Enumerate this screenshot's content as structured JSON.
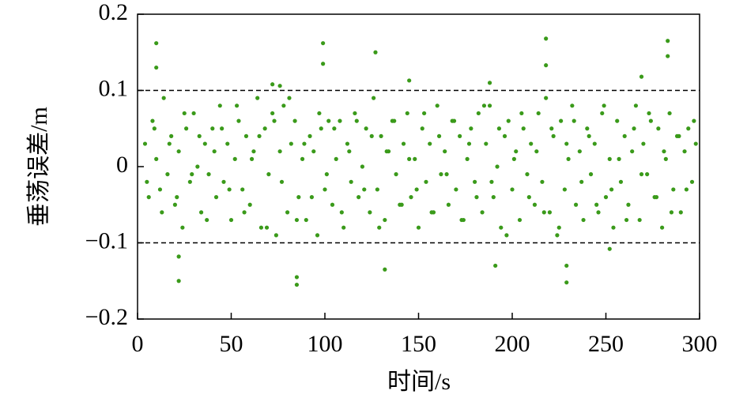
{
  "chart_data": {
    "type": "scatter",
    "xlabel": "时间/s",
    "ylabel": "垂荡误差/m",
    "xlim": [
      0,
      300
    ],
    "xticks": [
      0,
      50,
      100,
      150,
      200,
      250,
      300
    ],
    "ylim": [
      -0.2,
      0.2
    ],
    "yticks": [
      {
        "value": -0.2,
        "label": "−0.2"
      },
      {
        "value": -0.1,
        "label": "−0.1"
      },
      0,
      0.1,
      0.2
    ],
    "reference_lines": [
      0.1,
      -0.1
    ],
    "series": [
      {
        "color": "#3a9a1a",
        "x": [
          4,
          6,
          8,
          10,
          12,
          14,
          16,
          18,
          20,
          22,
          24,
          26,
          28,
          30,
          32,
          34,
          36,
          38,
          40,
          42,
          44,
          46,
          48,
          50,
          52,
          54,
          56,
          58,
          60,
          62,
          64,
          66,
          68,
          70,
          72,
          74,
          76,
          78,
          80,
          82,
          84,
          86,
          88,
          90,
          92,
          94,
          96,
          98,
          100,
          102,
          104,
          106,
          108,
          110,
          112,
          114,
          116,
          118,
          120,
          122,
          124,
          126,
          128,
          130,
          132,
          134,
          136,
          138,
          140,
          142,
          144,
          146,
          148,
          150,
          152,
          154,
          156,
          158,
          160,
          162,
          164,
          166,
          168,
          170,
          172,
          174,
          176,
          178,
          180,
          182,
          184,
          186,
          188,
          190,
          192,
          194,
          196,
          198,
          200,
          202,
          204,
          206,
          208,
          210,
          212,
          214,
          216,
          218,
          220,
          222,
          224,
          226,
          228,
          230,
          232,
          234,
          236,
          238,
          240,
          242,
          244,
          246,
          248,
          250,
          252,
          254,
          256,
          258,
          260,
          262,
          264,
          266,
          268,
          270,
          272,
          274,
          276,
          278,
          280,
          282,
          284,
          286,
          288,
          290,
          292,
          294,
          296,
          298
        ],
        "values": [
          0.03,
          -0.04,
          0.06,
          0.01,
          -0.03,
          0.09,
          -0.01,
          0.04,
          -0.05,
          0.02,
          -0.08,
          0.05,
          -0.02,
          0.07,
          0.0,
          -0.06,
          0.03,
          -0.01,
          0.05,
          -0.04,
          0.08,
          -0.02,
          0.03,
          -0.07,
          0.01,
          0.06,
          -0.03,
          0.04,
          -0.05,
          0.02,
          0.09,
          -0.08,
          0.05,
          -0.01,
          0.07,
          -0.09,
          0.02,
          0.08,
          -0.06,
          0.03,
          0.06,
          -0.04,
          0.01,
          -0.07,
          0.04,
          0.02,
          -0.09,
          0.05,
          -0.03,
          0.06,
          -0.05,
          0.01,
          0.06,
          -0.08,
          0.03,
          -0.02,
          0.07,
          -0.04,
          0.0,
          0.05,
          -0.06,
          0.09,
          -0.03,
          0.04,
          -0.07,
          0.02,
          0.06,
          -0.01,
          -0.05,
          0.03,
          0.07,
          -0.04,
          0.01,
          -0.08,
          0.05,
          -0.02,
          0.03,
          -0.06,
          0.08,
          -0.01,
          0.02,
          -0.05,
          0.06,
          -0.03,
          0.04,
          -0.07,
          0.01,
          0.05,
          -0.02,
          0.07,
          -0.06,
          0.03,
          0.08,
          -0.04,
          0.0,
          -0.08,
          0.04,
          0.06,
          -0.03,
          0.02,
          -0.07,
          0.05,
          -0.01,
          0.03,
          -0.05,
          0.07,
          -0.02,
          0.09,
          -0.06,
          0.04,
          -0.09,
          0.06,
          -0.03,
          0.01,
          0.08,
          -0.05,
          0.02,
          -0.07,
          0.05,
          -0.01,
          0.03,
          -0.06,
          0.07,
          -0.04,
          0.01,
          -0.08,
          0.06,
          -0.02,
          0.04,
          -0.05,
          0.02,
          0.08,
          -0.07,
          0.03,
          -0.01,
          0.06,
          -0.04,
          0.05,
          -0.08,
          0.01,
          0.07,
          -0.03,
          0.04,
          -0.06,
          0.02,
          0.05,
          -0.02,
          0.03
        ]
      },
      {
        "color": "#3a9a1a",
        "x": [
          5,
          9,
          13,
          17,
          21,
          25,
          29,
          33,
          37,
          41,
          45,
          49,
          53,
          57,
          61,
          65,
          69,
          73,
          77,
          81,
          85,
          89,
          93,
          97,
          101,
          105,
          109,
          113,
          117,
          121,
          125,
          129,
          133,
          137,
          141,
          145,
          149,
          153,
          157,
          161,
          165,
          169,
          173,
          177,
          181,
          185,
          189,
          193,
          197,
          201,
          205,
          209,
          213,
          217,
          221,
          225,
          229,
          233,
          237,
          241,
          245,
          249,
          253,
          257,
          261,
          265,
          269,
          273,
          277,
          281,
          285,
          289,
          293,
          297
        ],
        "values": [
          -0.02,
          0.05,
          -0.06,
          0.03,
          -0.04,
          0.07,
          -0.01,
          0.04,
          -0.07,
          0.02,
          0.05,
          -0.03,
          0.08,
          -0.06,
          0.01,
          0.04,
          -0.08,
          0.06,
          -0.02,
          0.09,
          -0.07,
          0.03,
          -0.04,
          0.07,
          -0.01,
          0.05,
          -0.06,
          0.02,
          0.06,
          -0.03,
          0.04,
          -0.08,
          0.02,
          0.06,
          -0.05,
          0.01,
          -0.03,
          0.07,
          -0.06,
          0.04,
          -0.01,
          0.06,
          -0.07,
          0.03,
          -0.04,
          0.08,
          -0.02,
          0.05,
          -0.09,
          0.01,
          0.07,
          -0.04,
          0.02,
          -0.06,
          0.05,
          -0.08,
          0.03,
          0.06,
          -0.02,
          0.04,
          -0.05,
          0.08,
          -0.03,
          0.01,
          -0.07,
          0.05,
          -0.01,
          0.07,
          -0.04,
          0.02,
          -0.06,
          0.04,
          -0.03,
          0.06
        ]
      },
      {
        "color": "#3a9a1a",
        "x": [
          10,
          10,
          22,
          22,
          99,
          99,
          85,
          85,
          127,
          132,
          145,
          188,
          191,
          218,
          218,
          229,
          229,
          252,
          269,
          283,
          283,
          72,
          76
        ],
        "values": [
          0.162,
          0.13,
          -0.15,
          -0.118,
          0.162,
          0.135,
          -0.155,
          -0.145,
          0.15,
          -0.135,
          0.113,
          0.11,
          -0.13,
          0.168,
          0.133,
          -0.152,
          -0.13,
          -0.108,
          0.118,
          0.165,
          0.145,
          0.108,
          0.106
        ]
      }
    ]
  }
}
